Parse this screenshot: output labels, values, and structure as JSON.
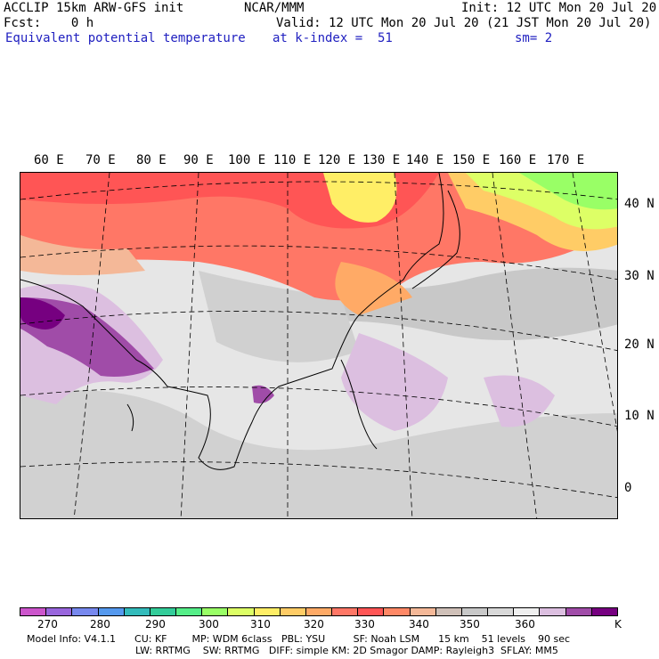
{
  "header": {
    "model": "ACCLIP 15km ARW-GFS init",
    "center": "NCAR/MMM",
    "init": "Init: 12 UTC Mon 20 Jul 20",
    "fcst": "Fcst:    0 h",
    "valid": "Valid: 12 UTC Mon 20 Jul 20 (21 JST Mon 20 Jul 20)",
    "field": "Equivalent potential temperature",
    "level": "at k-index =  51",
    "smooth": "sm= 2"
  },
  "map": {
    "lon_labels": [
      "60 E",
      "70 E",
      "80 E",
      "90 E",
      "100 E",
      "110 E",
      "120 E",
      "130 E",
      "140 E",
      "150 E",
      "160 E",
      "170 E"
    ],
    "lat_labels": [
      "40 N",
      "30 N",
      "20 N",
      "10 N",
      "0"
    ]
  },
  "colorbar": {
    "colors": [
      "#cc55cc",
      "#9966dd",
      "#7788ee",
      "#5599ee",
      "#33bbbb",
      "#33cc99",
      "#55ee88",
      "#99ff66",
      "#ddff66",
      "#ffee66",
      "#ffcc66",
      "#ffaa66",
      "#ff7766",
      "#ff5555",
      "#ff8866",
      "#f4b898",
      "#cfc0b8",
      "#c8c8c8",
      "#d8d8d8",
      "#efefef",
      "#dcbfe0",
      "#a04ca8",
      "#760080"
    ],
    "labels": [
      "270",
      "280",
      "290",
      "300",
      "310",
      "320",
      "330",
      "340",
      "350",
      "360",
      "K"
    ]
  },
  "footer": {
    "line1": "Model Info: V4.1.1      CU: KF        MP: WDM 6class   PBL: YSU         SF: Noah LSM      15 km    51 levels    90 sec",
    "line2": "LW: RRTMG    SW: RRTMG   DIFF: simple KM: 2D Smagor DAMP: Rayleigh3  SFLAY: MM5"
  }
}
